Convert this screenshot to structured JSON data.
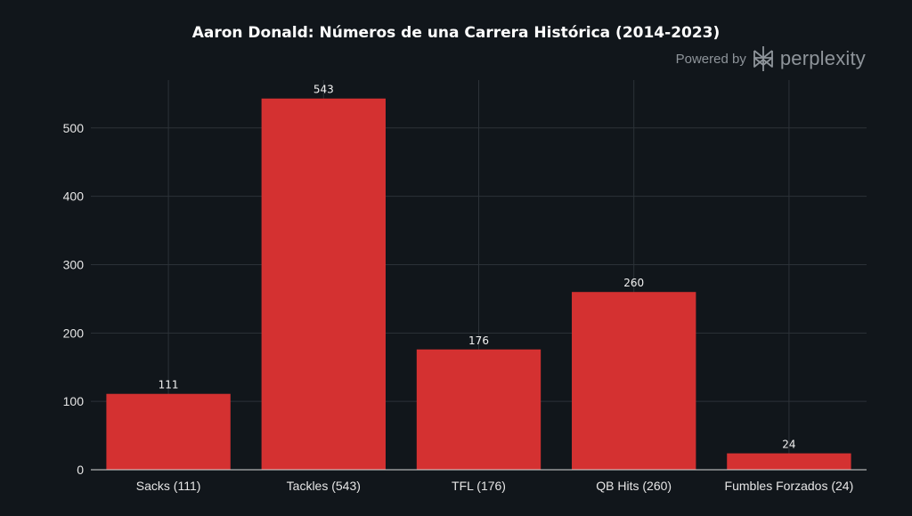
{
  "watermark": {
    "powered_by": "Powered by",
    "brand": "perplexity",
    "logo_icon": "perplexity-logo-icon"
  },
  "colors": {
    "background": "#11161b",
    "bar": "#d43131",
    "grid": "#2c3238",
    "text": "#ffffff"
  },
  "chart_data": {
    "type": "bar",
    "title": "Aaron Donald: Números de una Carrera Histórica (2014-2023)",
    "xlabel": "",
    "ylabel": "",
    "categories": [
      "Sacks (111)",
      "Tackles (543)",
      "TFL (176)",
      "QB Hits (260)",
      "Fumbles Forzados (24)"
    ],
    "values": [
      111,
      543,
      176,
      260,
      24
    ],
    "ylim": [
      0,
      570
    ],
    "yticks": [
      0,
      100,
      200,
      300,
      400,
      500
    ],
    "grid": true,
    "legend": "none",
    "show_data_labels": true
  }
}
